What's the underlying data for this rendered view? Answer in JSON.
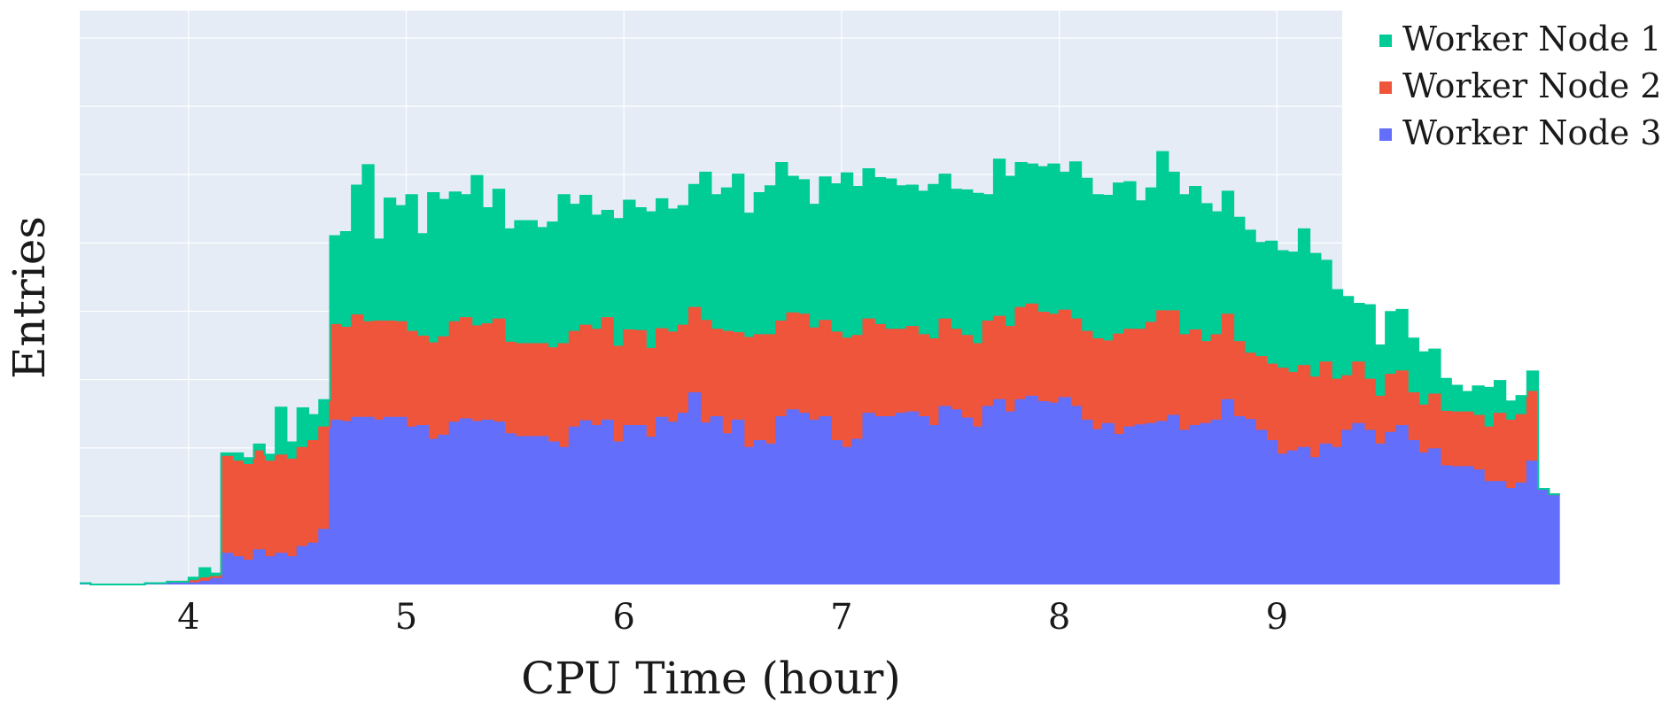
{
  "chart_data": {
    "type": "area",
    "stacked": true,
    "step": true,
    "xlabel": "CPU Time (hour)",
    "ylabel": "Entries",
    "xlim": [
      3.5,
      9.3
    ],
    "ylim": [
      0,
      840
    ],
    "x_ticks": [
      4,
      5,
      6,
      7,
      8,
      9
    ],
    "y_tick_labels_shown": false,
    "grid": true,
    "legend_position": "right",
    "plot_background": "#e5ecf6",
    "bin_width": 0.05,
    "x_start": 3.5,
    "series": [
      {
        "name": "Worker Node 3",
        "color": "#636efa",
        "values": [
          2,
          0,
          0,
          0,
          0,
          0,
          2,
          2,
          2,
          2,
          2,
          4,
          8,
          45,
          40,
          35,
          50,
          40,
          45,
          40,
          55,
          60,
          80,
          240,
          238,
          244,
          244,
          240,
          244,
          244,
          230,
          232,
          212,
          218,
          237,
          242,
          238,
          240,
          237,
          220,
          216,
          216,
          216,
          208,
          200,
          230,
          239,
          232,
          240,
          208,
          232,
          232,
          215,
          244,
          237,
          250,
          280,
          236,
          245,
          220,
          240,
          200,
          210,
          205,
          245,
          255,
          250,
          240,
          245,
          210,
          200,
          212,
          250,
          245,
          245,
          250,
          252,
          245,
          232,
          260,
          255,
          243,
          230,
          260,
          270,
          252,
          270,
          275,
          267,
          265,
          273,
          260,
          240,
          226,
          235,
          219,
          230,
          233,
          235,
          238,
          247,
          225,
          232,
          235,
          240,
          270,
          245,
          241,
          225,
          210,
          190,
          195,
          200,
          185,
          205,
          200,
          225,
          235,
          225,
          205,
          222,
          232,
          210,
          192,
          198,
          173,
          172,
          172,
          167,
          150,
          150,
          140,
          148,
          180,
          140,
          132
        ]
      },
      {
        "name": "Worker Node 2",
        "color": "#ef553b",
        "values": [
          0,
          0,
          0,
          0,
          0,
          0,
          0,
          0,
          2,
          2,
          3,
          5,
          3,
          142,
          140,
          140,
          145,
          140,
          144,
          143,
          145,
          150,
          150,
          140,
          138,
          150,
          140,
          145,
          141,
          140,
          140,
          131,
          141,
          144,
          147,
          148,
          140,
          141,
          151,
          134,
          136,
          136,
          136,
          138,
          152,
          140,
          140,
          141,
          150,
          140,
          140,
          139,
          130,
          130,
          132,
          129,
          125,
          150,
          128,
          150,
          128,
          161,
          155,
          160,
          140,
          142,
          145,
          135,
          141,
          159,
          160,
          152,
          138,
          135,
          128,
          123,
          125,
          120,
          127,
          128,
          118,
          121,
          122,
          125,
          122,
          125,
          135,
          135,
          131,
          130,
          128,
          128,
          130,
          133,
          121,
          147,
          143,
          140,
          148,
          162,
          153,
          140,
          140,
          120,
          125,
          125,
          110,
          97,
          108,
          112,
          126,
          115,
          120,
          118,
          120,
          100,
          80,
          90,
          75,
          70,
          85,
          80,
          70,
          70,
          80,
          80,
          80,
          80,
          80,
          80,
          100,
          100,
          100,
          102,
          0,
          0
        ]
      },
      {
        "name": "Worker Node 1",
        "color": "#00cc96",
        "values": [
          0,
          0,
          0,
          0,
          0,
          0,
          0,
          0,
          0,
          0,
          5,
          15,
          5,
          5,
          12,
          10,
          10,
          10,
          70,
          25,
          58,
          38,
          40,
          130,
          140,
          190,
          230,
          120,
          180,
          170,
          200,
          150,
          220,
          201,
          190,
          180,
          220,
          170,
          190,
          166,
          180,
          180,
          170,
          184,
          218,
          186,
          190,
          167,
          157,
          187,
          190,
          180,
          200,
          190,
          180,
          175,
          180,
          217,
          197,
          210,
          232,
          182,
          208,
          218,
          232,
          200,
          197,
          181,
          210,
          217,
          242,
          218,
          220,
          215,
          220,
          210,
          207,
          210,
          226,
          212,
          205,
          213,
          220,
          185,
          230,
          220,
          212,
          205,
          213,
          220,
          202,
          230,
          224,
          211,
          213,
          221,
          216,
          188,
          197,
          233,
          203,
          205,
          210,
          202,
          180,
          180,
          182,
          180,
          167,
          180,
          172,
          176,
          200,
          181,
          149,
          131,
          116,
          86,
          109,
          75,
          92,
          90,
          80,
          78,
          66,
          48,
          39,
          30,
          43,
          58,
          48,
          28,
          28,
          30,
          0,
          0
        ]
      }
    ]
  }
}
